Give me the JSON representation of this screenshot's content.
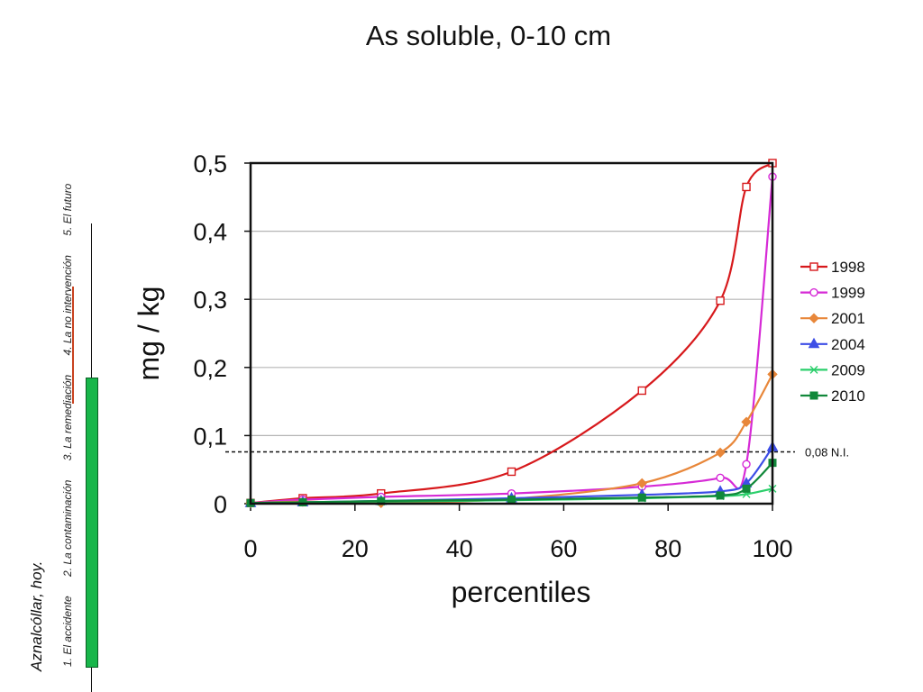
{
  "side_title": "Aznalcóllar, hoy.",
  "nav": {
    "items": [
      "1. El accidente",
      "2. La contaminación",
      "3. La remediación",
      "4. La no intervención",
      "5. El futuro"
    ]
  },
  "colors": {
    "accent_green": "#18b64a",
    "accent_red": "#c8421f"
  },
  "chart_data": {
    "type": "line",
    "title": "As soluble, 0-10 cm",
    "xlabel": "percentiles",
    "ylabel": "mg / kg",
    "xlim": [
      0,
      100
    ],
    "ylim": [
      0,
      0.5
    ],
    "x_ticks": [
      "0",
      "20",
      "40",
      "60",
      "80",
      "100"
    ],
    "x_tick_values": [
      0,
      20,
      40,
      60,
      80,
      100
    ],
    "y_ticks": [
      "0",
      "0,1",
      "0,2",
      "0,3",
      "0,4",
      "0,5"
    ],
    "y_tick_values": [
      0,
      0.1,
      0.2,
      0.3,
      0.4,
      0.5
    ],
    "grid": "horizontal",
    "legend_position": "right",
    "x": [
      0,
      10,
      25,
      50,
      75,
      90,
      95,
      100
    ],
    "series": [
      {
        "name": "1998",
        "color": "#d7191c",
        "marker": "square-open",
        "values": [
          0.001,
          0.008,
          0.015,
          0.047,
          0.166,
          0.298,
          0.465,
          0.5
        ]
      },
      {
        "name": "1999",
        "color": "#d62ad6",
        "marker": "circle-open",
        "values": [
          0.001,
          0.006,
          0.01,
          0.015,
          0.025,
          0.038,
          0.058,
          0.48
        ]
      },
      {
        "name": "2001",
        "color": "#e8873a",
        "marker": "diamond",
        "values": [
          0.001,
          0.003,
          0.001,
          0.007,
          0.03,
          0.075,
          0.12,
          0.19
        ]
      },
      {
        "name": "2004",
        "color": "#3d4ee6",
        "marker": "triangle",
        "values": [
          0.001,
          0.002,
          0.004,
          0.008,
          0.013,
          0.018,
          0.03,
          0.083
        ]
      },
      {
        "name": "2009",
        "color": "#2bcf6b",
        "marker": "cross",
        "values": [
          0.001,
          0.002,
          0.003,
          0.005,
          0.008,
          0.011,
          0.014,
          0.022
        ]
      },
      {
        "name": "2010",
        "color": "#11883a",
        "marker": "square",
        "values": [
          0.001,
          0.002,
          0.004,
          0.006,
          0.009,
          0.012,
          0.022,
          0.06
        ]
      }
    ],
    "reference_line": {
      "y": 0.076,
      "label": "0,08 N.I."
    }
  }
}
